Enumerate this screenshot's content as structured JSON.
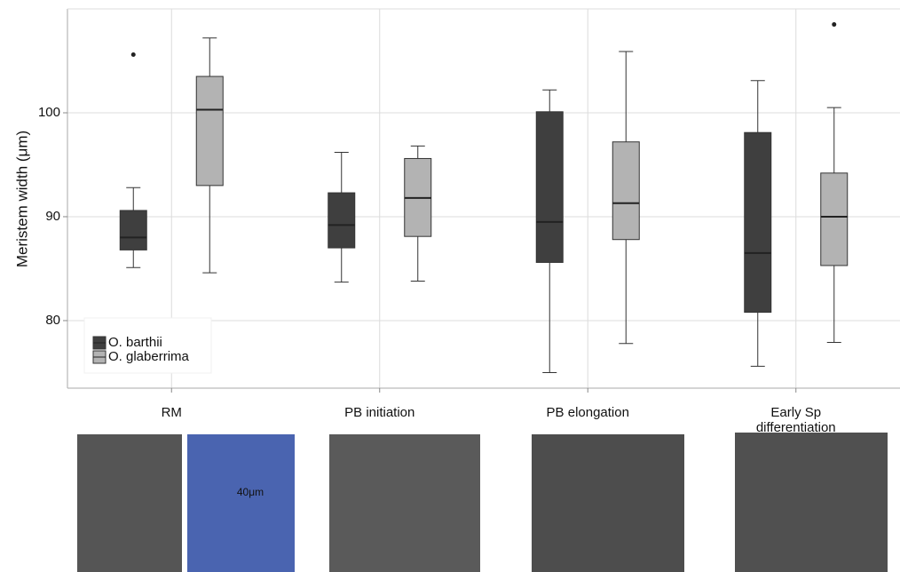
{
  "chart_data": {
    "type": "boxplot",
    "y_label": "Meristem width (μm)",
    "categories": [
      "RM",
      "PB initiation",
      "PB elongation",
      "Early Sp differentiation"
    ],
    "series": [
      {
        "name": "O. barthii",
        "color": "#3f3f3f",
        "boxes": [
          {
            "whisker_low": 85.1,
            "q1": 86.8,
            "median": 88.0,
            "q3": 90.6,
            "whisker_high": 92.8,
            "outliers": [
              105.6
            ]
          },
          {
            "whisker_low": 83.7,
            "q1": 87.0,
            "median": 89.2,
            "q3": 92.3,
            "whisker_high": 96.2,
            "outliers": []
          },
          {
            "whisker_low": 75.0,
            "q1": 85.6,
            "median": 89.5,
            "q3": 100.1,
            "whisker_high": 102.2,
            "outliers": []
          },
          {
            "whisker_low": 75.6,
            "q1": 80.8,
            "median": 86.5,
            "q3": 98.1,
            "whisker_high": 103.1,
            "outliers": []
          }
        ]
      },
      {
        "name": "O. glaberrima",
        "color": "#b3b3b3",
        "boxes": [
          {
            "whisker_low": 84.6,
            "q1": 93.0,
            "median": 100.3,
            "q3": 103.5,
            "whisker_high": 107.2,
            "outliers": []
          },
          {
            "whisker_low": 83.8,
            "q1": 88.1,
            "median": 91.8,
            "q3": 95.6,
            "whisker_high": 96.8,
            "outliers": []
          },
          {
            "whisker_low": 77.8,
            "q1": 87.8,
            "median": 91.3,
            "q3": 97.2,
            "whisker_high": 105.9,
            "outliers": []
          },
          {
            "whisker_low": 77.9,
            "q1": 85.3,
            "median": 90.0,
            "q3": 94.2,
            "whisker_high": 100.5,
            "outliers": [
              108.5
            ]
          }
        ]
      }
    ],
    "ylim": [
      73.5,
      110
    ],
    "yticks": [
      80,
      90,
      100
    ],
    "grid": true,
    "legend": "bottom-left",
    "annotation": "40μm"
  }
}
